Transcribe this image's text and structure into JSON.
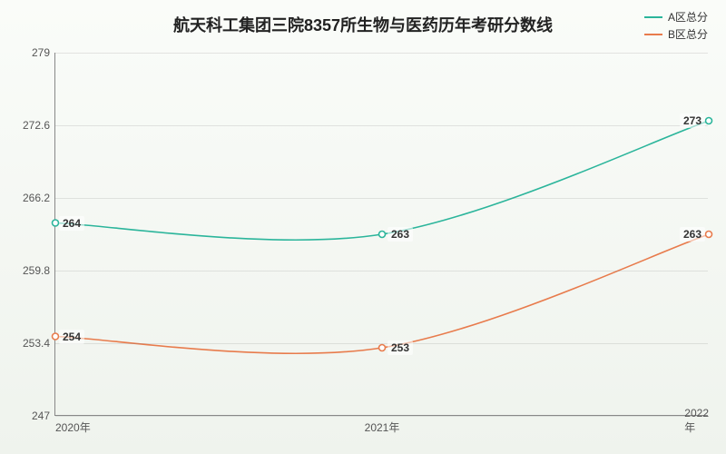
{
  "chart": {
    "type": "line",
    "title": "航天科工集团三院8357所生物与医药历年考研分数线",
    "title_fontsize": 18,
    "background_gradient": [
      "#fafcf9",
      "#eff3ed"
    ],
    "xlim": [
      2020,
      2022
    ],
    "ylim": [
      247,
      279
    ],
    "ytick_step": 6.4,
    "yticks": [
      247,
      253.4,
      259.8,
      266.2,
      272.6,
      279
    ],
    "xticks": [
      2020,
      2021,
      2022
    ],
    "xtick_labels": [
      "2020年",
      "2021年",
      "2022年"
    ],
    "grid_color": "rgba(120,120,120,0.18)",
    "axis_color": "#888",
    "label_fontsize": 12,
    "line_width": 1.6,
    "marker": "circle",
    "marker_size": 3.5,
    "smooth": true,
    "series": [
      {
        "name": "A区总分",
        "color": "#2bb59b",
        "x": [
          2020,
          2021,
          2022
        ],
        "y": [
          264,
          263,
          273
        ],
        "labels": [
          "264",
          "263",
          "273"
        ],
        "label_offset": [
          [
            18,
            0
          ],
          [
            20,
            0
          ],
          [
            25,
            0
          ]
        ]
      },
      {
        "name": "B区总分",
        "color": "#e87b4c",
        "x": [
          2020,
          2021,
          2022
        ],
        "y": [
          254,
          253,
          263
        ],
        "labels": [
          "254",
          "253",
          "263"
        ],
        "label_offset": [
          [
            18,
            0
          ],
          [
            20,
            0
          ],
          [
            25,
            0
          ]
        ]
      }
    ],
    "legend": {
      "position": "top-right",
      "fontsize": 12,
      "items": [
        "A区总分",
        "B区总分"
      ]
    }
  }
}
